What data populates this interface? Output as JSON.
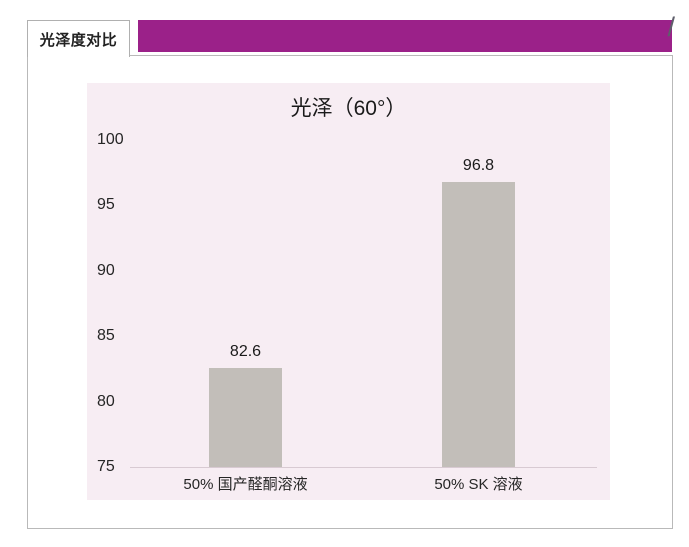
{
  "tab": {
    "label": "光泽度对比"
  },
  "header": {
    "slash": "/"
  },
  "chart_data": {
    "type": "bar",
    "title": "光泽（60°）",
    "categories": [
      "50% 国产醛酮溶液",
      "50% SK 溶液"
    ],
    "values": [
      82.6,
      96.8
    ],
    "value_labels": [
      "82.6",
      "96.8"
    ],
    "y_ticks": [
      100,
      95,
      90,
      85,
      80,
      75
    ],
    "ylim": [
      75,
      100
    ],
    "xlabel": "",
    "ylabel": "",
    "grid": false,
    "legend": false,
    "bar_color": "#c2beb9",
    "plot_background": "#f7edf3"
  },
  "colors": {
    "accent_bar": "#9b2189",
    "frame_border": "#b9b9b9",
    "axis_line": "#d8cad2",
    "text": "#222222"
  }
}
